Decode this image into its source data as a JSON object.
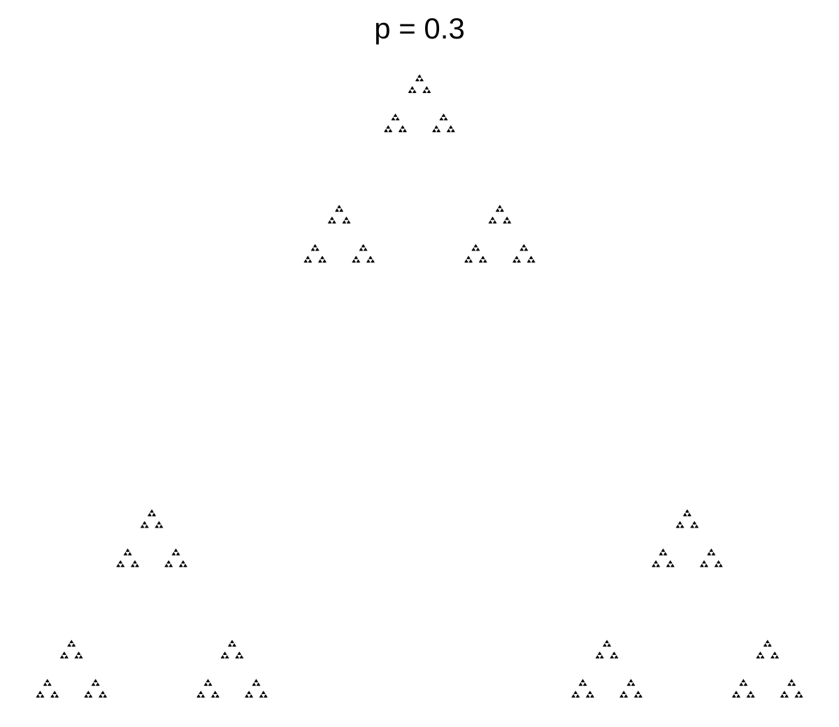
{
  "title": "p = 0.3",
  "fractal": {
    "shape": "sierpinski-triangle",
    "contraction_ratio": 0.3,
    "levels_shown": 6,
    "ink_color": "#000000",
    "background_color": "#ffffff"
  }
}
